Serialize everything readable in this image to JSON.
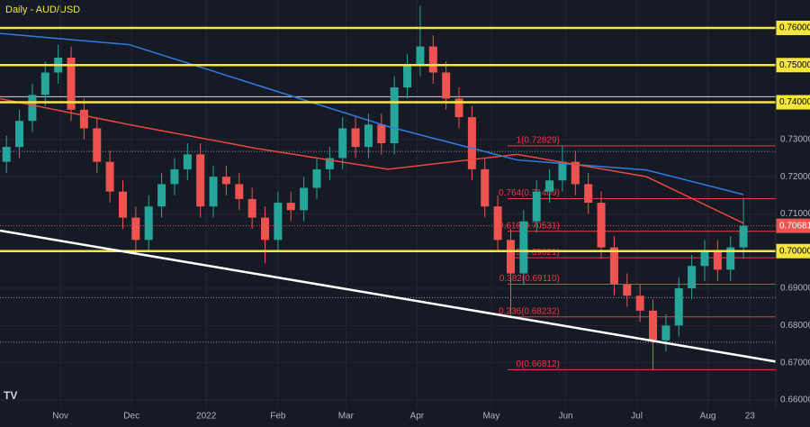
{
  "chart_data": {
    "type": "candlestick",
    "title": "Daily - AUD/USD",
    "x": [
      2,
      6,
      10,
      14,
      18,
      22,
      26,
      30,
      34,
      38,
      42,
      46,
      50,
      54,
      58,
      62,
      66,
      70,
      74,
      78,
      82,
      86,
      90,
      94,
      98,
      102,
      106,
      110,
      114,
      118,
      122,
      126,
      130,
      134,
      138,
      142,
      146,
      150,
      154,
      158,
      162,
      166,
      170,
      174,
      178,
      182,
      186,
      190,
      194,
      198,
      202,
      206,
      210,
      214,
      218,
      222,
      226,
      230
    ],
    "open": [
      0.724,
      0.728,
      0.735,
      0.742,
      0.748,
      0.752,
      0.738,
      0.733,
      0.724,
      0.716,
      0.709,
      0.703,
      0.712,
      0.718,
      0.722,
      0.726,
      0.712,
      0.72,
      0.718,
      0.714,
      0.709,
      0.703,
      0.713,
      0.711,
      0.717,
      0.722,
      0.725,
      0.733,
      0.728,
      0.734,
      0.729,
      0.744,
      0.75,
      0.755,
      0.748,
      0.741,
      0.736,
      0.722,
      0.712,
      0.703,
      0.694,
      0.708,
      0.716,
      0.719,
      0.724,
      0.718,
      0.713,
      0.701,
      0.691,
      0.688,
      0.684,
      0.676,
      0.68,
      0.69,
      0.696,
      0.7,
      0.695,
      0.701
    ],
    "high": [
      0.731,
      0.738,
      0.745,
      0.751,
      0.7555,
      0.755,
      0.741,
      0.736,
      0.727,
      0.719,
      0.712,
      0.715,
      0.721,
      0.725,
      0.729,
      0.729,
      0.723,
      0.723,
      0.721,
      0.717,
      0.712,
      0.716,
      0.716,
      0.72,
      0.725,
      0.728,
      0.736,
      0.736,
      0.737,
      0.737,
      0.747,
      0.753,
      0.766,
      0.758,
      0.751,
      0.744,
      0.739,
      0.725,
      0.715,
      0.706,
      0.711,
      0.719,
      0.722,
      0.7283,
      0.727,
      0.721,
      0.716,
      0.704,
      0.694,
      0.691,
      0.687,
      0.683,
      0.693,
      0.699,
      0.703,
      0.703,
      0.704,
      0.7141
    ],
    "low": [
      0.721,
      0.725,
      0.732,
      0.739,
      0.745,
      0.735,
      0.73,
      0.721,
      0.713,
      0.706,
      0.6995,
      0.7,
      0.709,
      0.715,
      0.719,
      0.709,
      0.709,
      0.715,
      0.711,
      0.706,
      0.6967,
      0.7,
      0.708,
      0.708,
      0.714,
      0.719,
      0.722,
      0.725,
      0.725,
      0.726,
      0.726,
      0.741,
      0.747,
      0.745,
      0.738,
      0.733,
      0.719,
      0.709,
      0.7,
      0.6829,
      0.691,
      0.705,
      0.713,
      0.716,
      0.715,
      0.71,
      0.698,
      0.688,
      0.685,
      0.681,
      0.6681,
      0.673,
      0.677,
      0.687,
      0.692,
      0.692,
      0.692,
      0.698
    ],
    "close": [
      0.728,
      0.735,
      0.742,
      0.748,
      0.752,
      0.738,
      0.733,
      0.724,
      0.716,
      0.709,
      0.703,
      0.712,
      0.718,
      0.722,
      0.726,
      0.712,
      0.72,
      0.718,
      0.714,
      0.709,
      0.703,
      0.713,
      0.711,
      0.717,
      0.722,
      0.725,
      0.733,
      0.728,
      0.734,
      0.729,
      0.744,
      0.75,
      0.755,
      0.748,
      0.741,
      0.736,
      0.722,
      0.712,
      0.703,
      0.694,
      0.708,
      0.716,
      0.719,
      0.724,
      0.718,
      0.713,
      0.701,
      0.691,
      0.688,
      0.684,
      0.676,
      0.68,
      0.69,
      0.696,
      0.7,
      0.695,
      0.701,
      0.7068
    ],
    "up_color": "#26a69a",
    "down_color": "#ef5350",
    "series": [
      {
        "color": "#2f7de1",
        "x": [
          0,
          40,
          80,
          120,
          160,
          200,
          230
        ],
        "values": [
          0.7585,
          0.7555,
          0.7445,
          0.7335,
          0.7245,
          0.7218,
          0.7152
        ]
      },
      {
        "color": "#e8483f",
        "x": [
          0,
          40,
          80,
          120,
          160,
          200,
          230
        ],
        "values": [
          0.741,
          0.734,
          0.7275,
          0.722,
          0.726,
          0.72,
          0.7075
        ]
      }
    ],
    "trendline": {
      "color": "#ffffff",
      "x": [
        0,
        240
      ],
      "values": [
        0.7055,
        0.6703
      ]
    },
    "levels": [
      {
        "value": 0.76,
        "label": "0.76000"
      },
      {
        "value": 0.75,
        "label": "0.75000"
      },
      {
        "value": 0.74,
        "label": "0.74000"
      },
      {
        "value": 0.7,
        "label": "0.70000"
      }
    ],
    "level_color": "#f5e63c",
    "white_level": 0.7415,
    "dotted_levels": [
      0.7268,
      0.6875,
      0.6755
    ],
    "fib_color": "#f23645",
    "fib_start": 157,
    "fib_levels": [
      {
        "value": 0.72829,
        "label": "1(0.72829)"
      },
      {
        "value": 0.71409,
        "label": "0.764(0.71409)"
      },
      {
        "value": 0.70531,
        "label": "0.618(0.70531)"
      },
      {
        "value": 0.69821,
        "label": "0.5(0.69821)"
      },
      {
        "value": 0.6911,
        "label": "0.382(0.69110)"
      },
      {
        "value": 0.68232,
        "label": "0.236(0.68232)"
      },
      {
        "value": 0.66812,
        "label": "0(0.66812)"
      }
    ],
    "last_price": {
      "value": 0.70681,
      "label": "0.70681"
    },
    "xlim": [
      0,
      240
    ],
    "ylim": [
      0.6578,
      0.7675
    ],
    "yticks": [
      {
        "value": 0.73,
        "label": "0.73000"
      },
      {
        "value": 0.72,
        "label": "0.72000"
      },
      {
        "value": 0.71,
        "label": "0.71000"
      },
      {
        "value": 0.69,
        "label": "0.69000"
      },
      {
        "value": 0.68,
        "label": "0.68000"
      },
      {
        "value": 0.67,
        "label": "0.67000"
      },
      {
        "value": 0.66,
        "label": "0.66000"
      }
    ],
    "xticks": [
      {
        "value": 18.7,
        "label": "Nov"
      },
      {
        "value": 40.7,
        "label": "Dec"
      },
      {
        "value": 63.8,
        "label": "2022"
      },
      {
        "value": 86,
        "label": "Feb"
      },
      {
        "value": 107,
        "label": "Mar"
      },
      {
        "value": 129,
        "label": "Apr"
      },
      {
        "value": 152,
        "label": "May"
      },
      {
        "value": 175,
        "label": "Jun"
      },
      {
        "value": 197,
        "label": "Jul"
      },
      {
        "value": 219,
        "label": "Aug"
      },
      {
        "value": 232,
        "label": "23"
      }
    ]
  }
}
